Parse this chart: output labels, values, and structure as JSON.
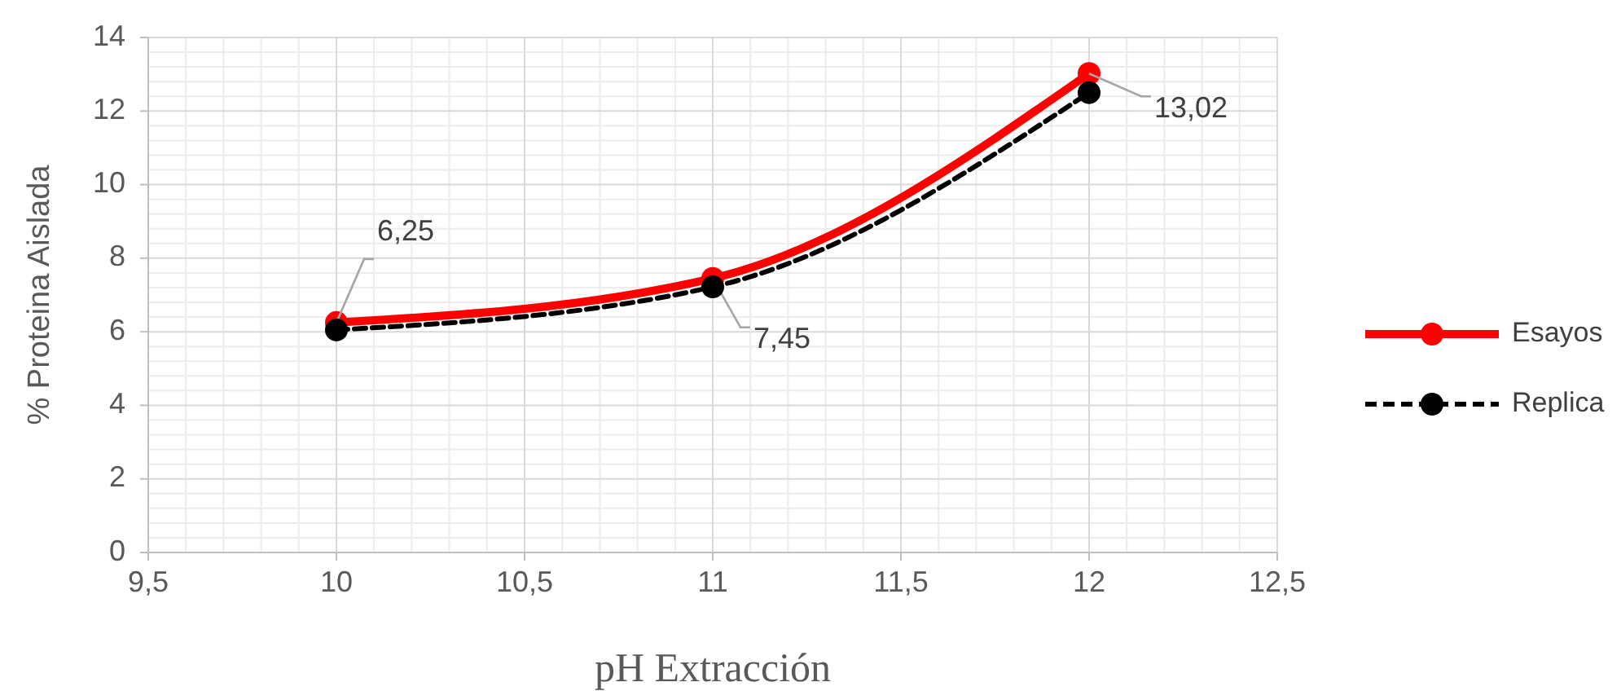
{
  "chart_data": {
    "type": "line",
    "xlabel": "pH Extracción",
    "ylabel": "% Proteina Aislada",
    "x": [
      10,
      11,
      12
    ],
    "xlim": [
      9.5,
      12.5
    ],
    "xticks": [
      {
        "value": 9.5,
        "label": "9,5"
      },
      10,
      {
        "value": 10.5,
        "label": "10,5"
      },
      11,
      {
        "value": 11.5,
        "label": "11,5"
      },
      12,
      {
        "value": 12.5,
        "label": "12,5"
      }
    ],
    "ylim": [
      0,
      14
    ],
    "yticks": [
      0,
      2,
      4,
      6,
      8,
      10,
      12,
      14
    ],
    "grid": true,
    "legend": "right",
    "marker": "circle",
    "series": [
      {
        "name": "Esayos",
        "color": "#ff0000",
        "values": [
          6.25,
          7.45,
          13.02
        ],
        "line_style": "solid",
        "value_labels": [
          "6,25",
          "7,45",
          "13,02"
        ]
      },
      {
        "name": "Replica",
        "color": "#000000",
        "values": [
          6.05,
          7.22,
          12.5
        ],
        "line_style": "dashed"
      }
    ]
  }
}
